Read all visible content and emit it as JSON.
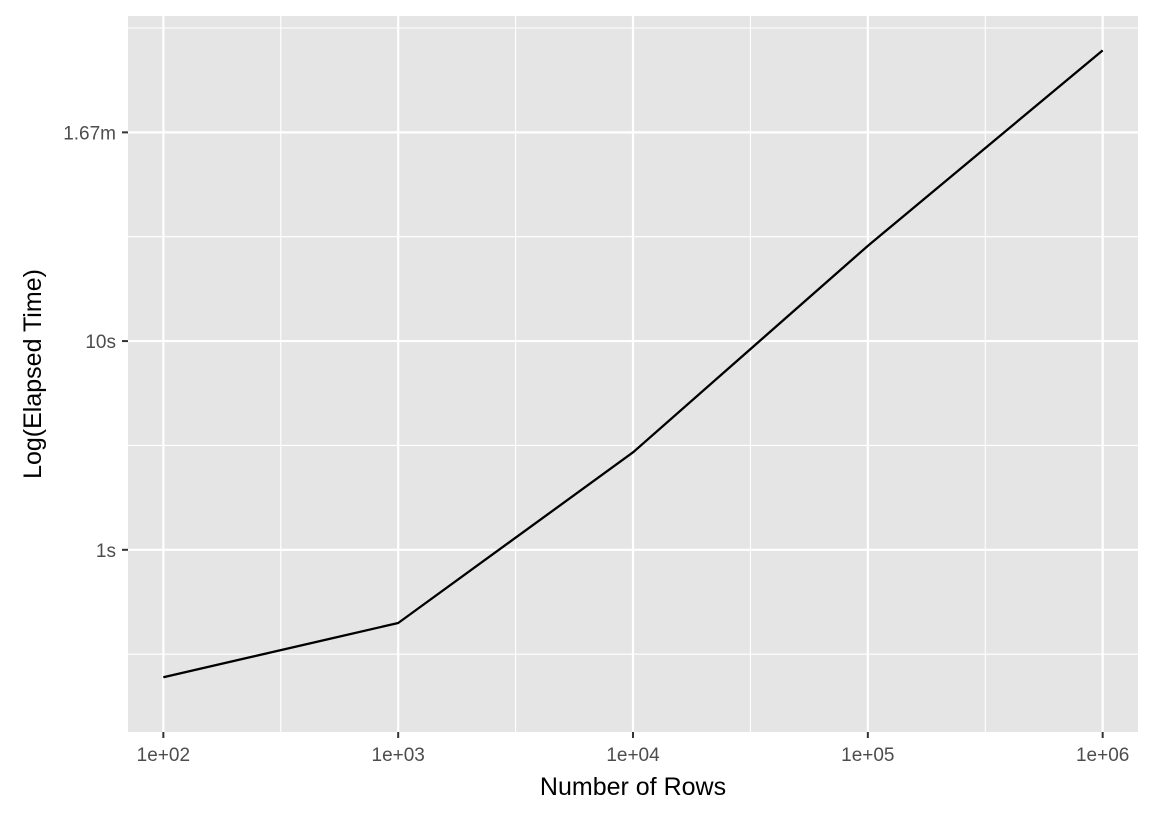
{
  "chart_data": {
    "type": "line",
    "title": "",
    "xlabel": "Number of Rows",
    "ylabel": "Log(Elapsed Time)",
    "x_scale": "log10",
    "y_scale": "log10",
    "xlim": [
      70.7,
      1414000
    ],
    "ylim_seconds": [
      0.134,
      361
    ],
    "x_ticks": [
      {
        "value": 100,
        "label": "1e+02"
      },
      {
        "value": 1000,
        "label": "1e+03"
      },
      {
        "value": 10000,
        "label": "1e+04"
      },
      {
        "value": 100000,
        "label": "1e+05"
      },
      {
        "value": 1000000,
        "label": "1e+06"
      }
    ],
    "y_ticks": [
      {
        "value": 1,
        "label": "1s"
      },
      {
        "value": 10,
        "label": "10s"
      },
      {
        "value": 100,
        "label": "1.67m"
      }
    ],
    "grid": true,
    "legend": "none",
    "series": [
      {
        "x": [
          100,
          1000,
          10000,
          100000,
          1000000
        ],
        "y": [
          0.245,
          0.446,
          2.93,
          28.6,
          247
        ],
        "color": "#000000"
      }
    ],
    "colors": {
      "panel_background": "#e5e5e5",
      "grid_line": "#ffffff",
      "line": "#000000",
      "tick_text": "#4d4d4d",
      "axis_title": "#000000"
    }
  }
}
